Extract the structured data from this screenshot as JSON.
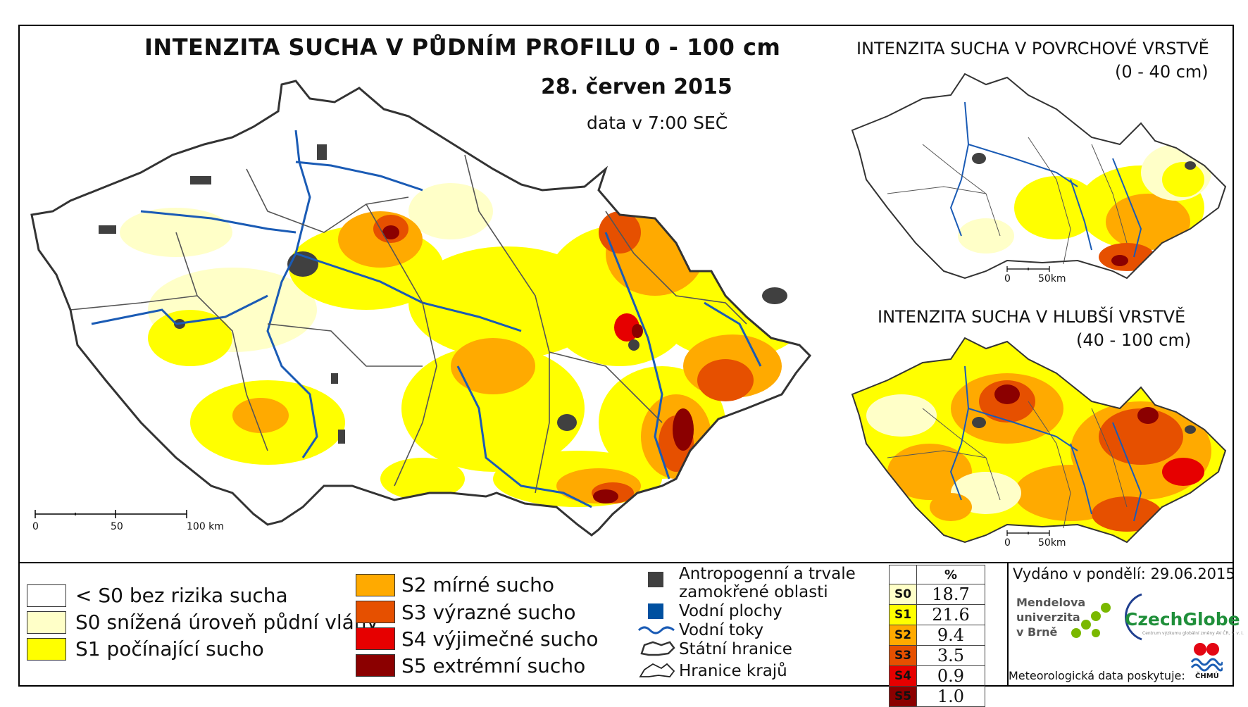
{
  "main_map": {
    "title": "INTENZITA SUCHA V PŮDNÍM PROFILU 0 - 100 cm",
    "date": "28. červen 2015",
    "time": "data v 7:00 SEČ",
    "scale": {
      "t0": "0",
      "t1": "50",
      "t2": "100 km"
    }
  },
  "inset_top": {
    "title_line1": "INTENZITA SUCHA V POVRCHOVÉ VRSTVĚ",
    "title_line2": "(0 - 40 cm)",
    "scale": {
      "t0": "0",
      "t1": "50km"
    }
  },
  "inset_bottom": {
    "title_line1": "INTENZITA SUCHA V HLUBŠÍ VRSTVĚ",
    "title_line2": "(40 - 100 cm)",
    "scale": {
      "t0": "0",
      "t1": "50km"
    }
  },
  "legend_drought": [
    {
      "label": "< S0 bez rizika sucha",
      "color": "#ffffff"
    },
    {
      "label": "S0 snížená úroveň půdní vláhy",
      "color": "#ffffc8"
    },
    {
      "label": "S1 počínající sucho",
      "color": "#ffff00"
    },
    {
      "label": "S2 mírné sucho",
      "color": "#ffaa00"
    },
    {
      "label": "S3 výrazné sucho",
      "color": "#e65000"
    },
    {
      "label": "S4 výjimečné sucho",
      "color": "#e60000"
    },
    {
      "label": "S5 extrémní sucho",
      "color": "#8b0000"
    }
  ],
  "legend_features": {
    "anthropogenic_line1": "Antropogenní a trvale",
    "anthropogenic_line2": "zamokřené oblasti",
    "water_bodies": "Vodní plochy",
    "rivers": "Vodní toky",
    "state_border": "Státní hranice",
    "region_border": "Hranice krajů",
    "anthropogenic_color": "#404040",
    "water_color": "#0050a0",
    "river_color": "#1a5bb5"
  },
  "percent_table": {
    "header": "%",
    "rows": [
      {
        "code": "S0",
        "value": "18.7",
        "color": "#ffffc8"
      },
      {
        "code": "S1",
        "value": "21.6",
        "color": "#ffff00"
      },
      {
        "code": "S2",
        "value": "9.4",
        "color": "#ffaa00"
      },
      {
        "code": "S3",
        "value": "3.5",
        "color": "#e65000"
      },
      {
        "code": "S4",
        "value": "0.9",
        "color": "#e60000"
      },
      {
        "code": "S5",
        "value": "1.0",
        "color": "#8b0000"
      }
    ]
  },
  "issued": "Vydáno v pondělí: 29.06.2015",
  "mendel": {
    "l1": "Mendelova",
    "l2": "univerzita",
    "l3": "v Brně"
  },
  "czechglobe": "CzechGlobe",
  "czechglobe_sub": "Centrum výzkumu globální změny AV ČR, v. v. i.",
  "meteo_data": "Meteorologická data poskytuje:",
  "chmu": "ČHMÚ"
}
